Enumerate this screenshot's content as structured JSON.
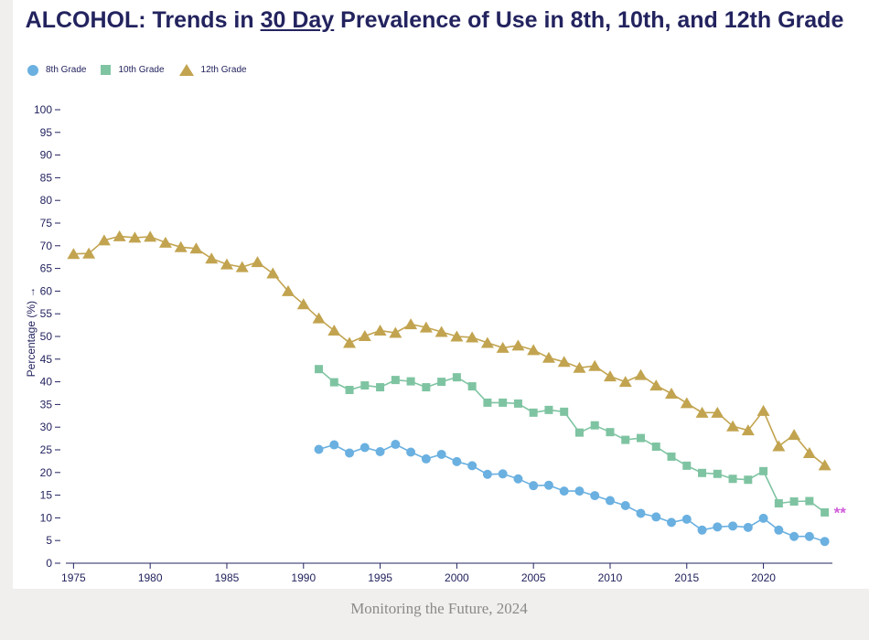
{
  "page": {
    "title_before": "ALCOHOL: Trends in ",
    "title_emph": "30 Day",
    "title_after": " Prevalence of Use in 8th, 10th, and 12th Grade",
    "footer": "Monitoring the Future, 2024",
    "note_marker": "**"
  },
  "colors": {
    "title": "#23235f",
    "axis": "#23235f",
    "grade8": "#6ab0e0",
    "grade10": "#7fc4a2",
    "grade12": "#c2a450",
    "note": "#d05cd8"
  },
  "chart_data": {
    "type": "line",
    "title": "ALCOHOL: Trends in 30 Day Prevalence of Use in 8th, 10th, and 12th Grade",
    "xlabel": "",
    "ylabel": "Percentage (%) →",
    "xlim": [
      1974.5,
      2024.5
    ],
    "ylim": [
      0,
      100
    ],
    "x_ticks": [
      1975,
      1980,
      1985,
      1990,
      1995,
      2000,
      2005,
      2010,
      2015,
      2020
    ],
    "y_ticks": [
      0,
      5,
      10,
      15,
      20,
      25,
      30,
      35,
      40,
      45,
      50,
      55,
      60,
      65,
      70,
      75,
      80,
      85,
      90,
      95,
      100
    ],
    "legend_position": "top-left",
    "series": [
      {
        "name": "8th Grade",
        "marker": "circle",
        "x": [
          1991,
          1992,
          1993,
          1994,
          1995,
          1996,
          1997,
          1998,
          1999,
          2000,
          2001,
          2002,
          2003,
          2004,
          2005,
          2006,
          2007,
          2008,
          2009,
          2010,
          2011,
          2012,
          2013,
          2014,
          2015,
          2016,
          2017,
          2018,
          2019,
          2020,
          2021,
          2022,
          2023,
          2024
        ],
        "values": [
          25.1,
          26.1,
          24.3,
          25.5,
          24.6,
          26.2,
          24.5,
          23.0,
          24.0,
          22.4,
          21.5,
          19.6,
          19.7,
          18.6,
          17.1,
          17.2,
          15.9,
          15.9,
          14.9,
          13.8,
          12.7,
          11.0,
          10.2,
          9.0,
          9.7,
          7.3,
          8.0,
          8.2,
          7.9,
          9.9,
          7.3,
          5.9,
          5.9,
          4.8
        ]
      },
      {
        "name": "10th Grade",
        "marker": "square",
        "x": [
          1991,
          1992,
          1993,
          1994,
          1995,
          1996,
          1997,
          1998,
          1999,
          2000,
          2001,
          2002,
          2003,
          2004,
          2005,
          2006,
          2007,
          2008,
          2009,
          2010,
          2011,
          2012,
          2013,
          2014,
          2015,
          2016,
          2017,
          2018,
          2019,
          2020,
          2021,
          2022,
          2023,
          2024
        ],
        "values": [
          42.8,
          39.9,
          38.2,
          39.2,
          38.8,
          40.4,
          40.1,
          38.8,
          40.0,
          41.0,
          39.0,
          35.4,
          35.4,
          35.2,
          33.2,
          33.8,
          33.4,
          28.8,
          30.4,
          28.9,
          27.2,
          27.6,
          25.7,
          23.5,
          21.5,
          19.9,
          19.7,
          18.6,
          18.4,
          20.3,
          13.2,
          13.6,
          13.7,
          11.2
        ]
      },
      {
        "name": "12th Grade",
        "marker": "triangle",
        "x": [
          1975,
          1976,
          1977,
          1978,
          1979,
          1980,
          1981,
          1982,
          1983,
          1984,
          1985,
          1986,
          1987,
          1988,
          1989,
          1990,
          1991,
          1992,
          1993,
          1994,
          1995,
          1996,
          1997,
          1998,
          1999,
          2000,
          2001,
          2002,
          2003,
          2004,
          2005,
          2006,
          2007,
          2008,
          2009,
          2010,
          2011,
          2012,
          2013,
          2014,
          2015,
          2016,
          2017,
          2018,
          2019,
          2020,
          2021,
          2022,
          2023,
          2024
        ],
        "values": [
          68.2,
          68.3,
          71.2,
          72.1,
          71.8,
          72.0,
          70.7,
          69.7,
          69.4,
          67.2,
          65.9,
          65.3,
          66.4,
          63.9,
          60.0,
          57.1,
          54.0,
          51.3,
          48.6,
          50.1,
          51.3,
          50.8,
          52.7,
          52.0,
          51.0,
          50.0,
          49.8,
          48.6,
          47.5,
          48.0,
          47.0,
          45.3,
          44.4,
          43.1,
          43.5,
          41.2,
          40.0,
          41.5,
          39.2,
          37.4,
          35.3,
          33.2,
          33.2,
          30.2,
          29.3,
          33.6,
          25.8,
          28.3,
          24.3,
          21.6
        ]
      }
    ]
  }
}
